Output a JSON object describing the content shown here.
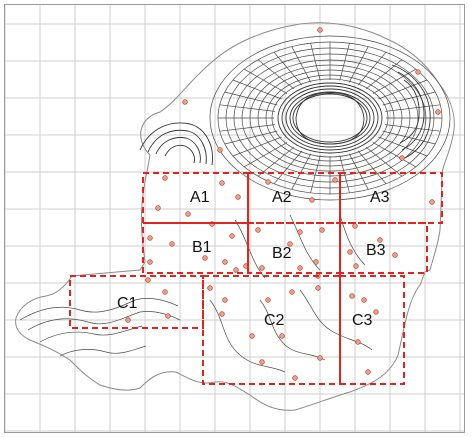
{
  "map": {
    "zones": [
      {
        "id": "A1",
        "label": "A1"
      },
      {
        "id": "A2",
        "label": "A2"
      },
      {
        "id": "A3",
        "label": "A3"
      },
      {
        "id": "B1",
        "label": "B1"
      },
      {
        "id": "B2",
        "label": "B2"
      },
      {
        "id": "B3",
        "label": "B3"
      },
      {
        "id": "C1",
        "label": "C1"
      },
      {
        "id": "C2",
        "label": "C2"
      },
      {
        "id": "C3",
        "label": "C3"
      }
    ],
    "colors": {
      "zone_outline": "#e0241f",
      "sample_points": "#d0604a",
      "contours": "#4a4a4a",
      "grid": "#cfcfcf"
    }
  }
}
